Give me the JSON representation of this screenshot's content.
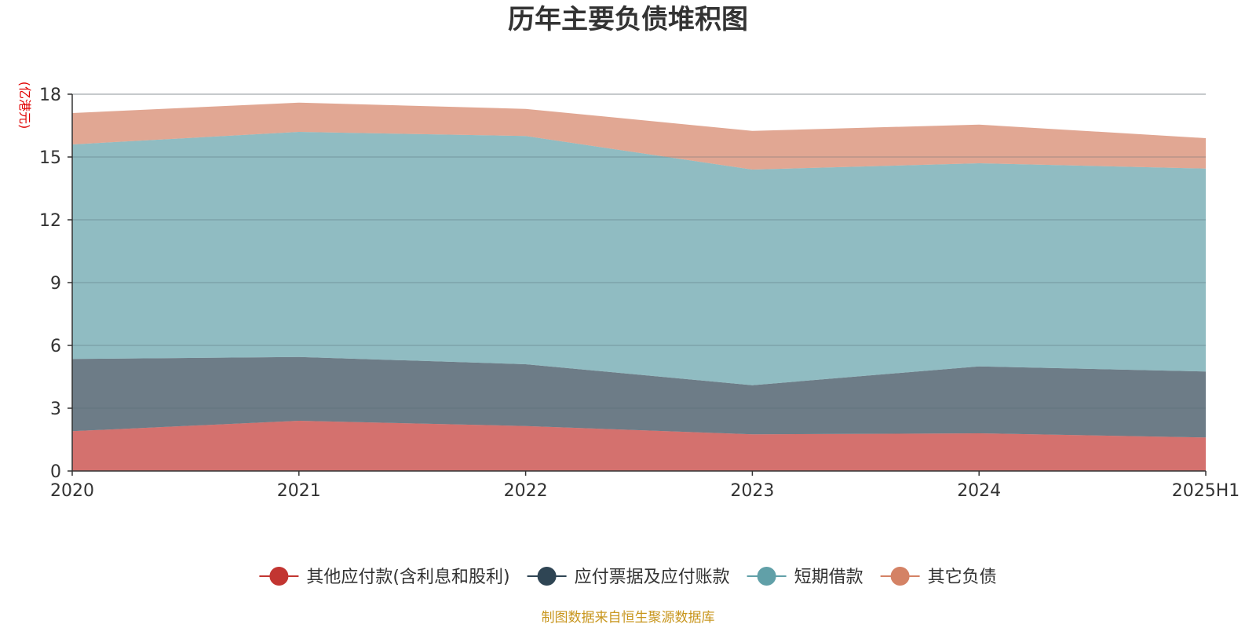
{
  "chart_data": {
    "type": "area",
    "stacked": true,
    "title": "历年主要负债堆积图",
    "ylabel": "(亿港元)",
    "xlabel": "",
    "ylim": [
      0,
      18
    ],
    "yticks": [
      "0",
      "3",
      "6",
      "9",
      "12",
      "15",
      "18"
    ],
    "categories": [
      "2020",
      "2021",
      "2022",
      "2023",
      "2024",
      "2025H1"
    ],
    "series": [
      {
        "name": "其他应付款(含利息和股利)",
        "color": "#c23531",
        "values": [
          1.9,
          2.4,
          2.15,
          1.75,
          1.8,
          1.6
        ]
      },
      {
        "name": "应付票据及应付账款",
        "color": "#2f4554",
        "values": [
          3.45,
          3.05,
          2.95,
          2.35,
          3.2,
          3.15
        ]
      },
      {
        "name": "短期借款",
        "color": "#61a0a8",
        "values": [
          10.25,
          10.75,
          10.9,
          10.3,
          9.7,
          9.7
        ]
      },
      {
        "name": "其它负债",
        "color": "#d48265",
        "values": [
          1.5,
          1.4,
          1.3,
          1.85,
          1.85,
          1.45
        ]
      }
    ],
    "legend_position": "bottom",
    "grid": true
  },
  "footer": {
    "source": "制图数据来自恒生聚源数据库"
  }
}
